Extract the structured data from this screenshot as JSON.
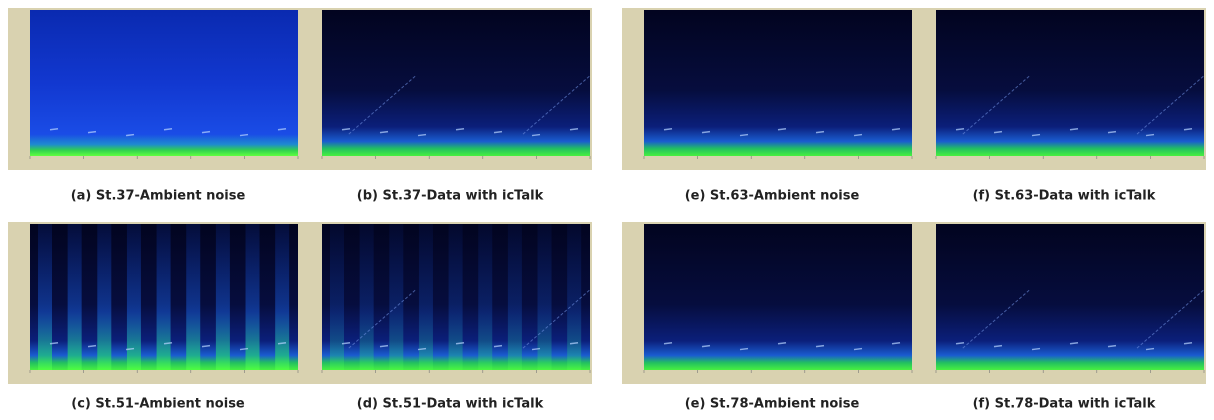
{
  "panels": [
    {
      "caption": "(a)  St.37-Ambient noise"
    },
    {
      "caption": "(b) St.37-Data with icTalk"
    },
    {
      "caption": "(e) St.63-Ambient noise"
    },
    {
      "caption": "(f) St.63-Data with icTalk"
    },
    {
      "caption": "(c) St.51-Ambient noise"
    },
    {
      "caption": "(d) St.51-Data with icTalk"
    },
    {
      "caption": "(e) St.78-Ambient noise"
    },
    {
      "caption": "(f) St.78-Data with icTalk"
    }
  ]
}
